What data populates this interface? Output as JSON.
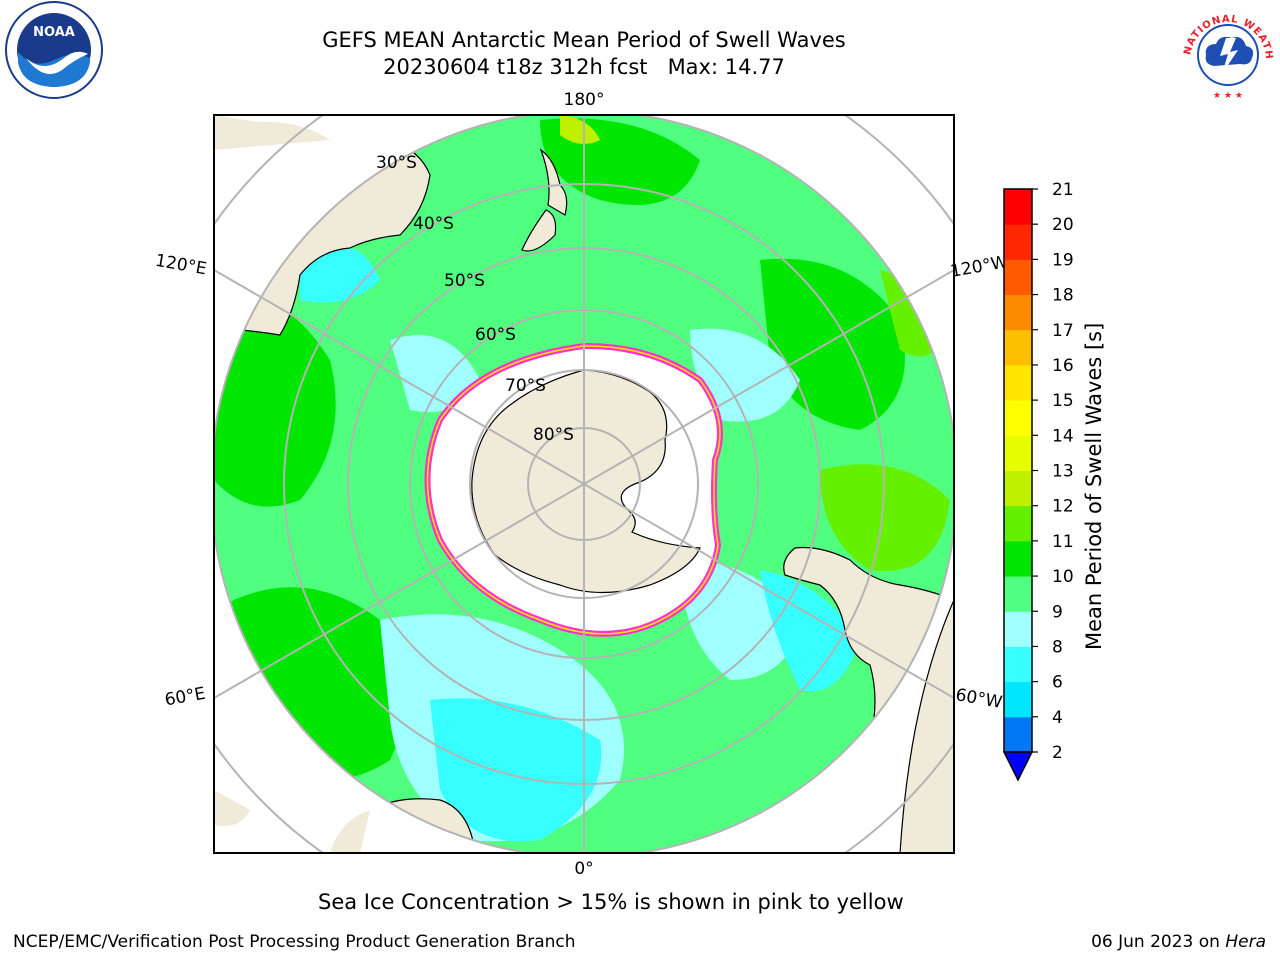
{
  "header": {
    "title_line1": "GEFS MEAN Antarctic Mean Period of Swell Waves",
    "title_line2": "20230604 t18z 312h fcst   Max: 14.77"
  },
  "logos": {
    "noaa": {
      "text": "NOAA",
      "ring_text": "NATIONAL OCEANIC AND ATMOSPHERIC ADMINISTRATION · U.S. DEPARTMENT OF COMMERCE"
    },
    "nws": {
      "ring_text": "NATIONAL WEATHER SERVICE"
    }
  },
  "map": {
    "projection": "south-polar-stereographic",
    "longitude_labels": {
      "top": "180°",
      "bottom": "0°",
      "left_upper": "120°E",
      "left_lower": "60°E",
      "right_upper": "120°W",
      "right_lower": "60°W"
    },
    "latitude_labels": [
      "30°S",
      "40°S",
      "50°S",
      "60°S",
      "70°S",
      "80°S"
    ],
    "colors": {
      "land": "#efebd8",
      "ice_free": "#ffffff",
      "grid": "#b4b4b4",
      "sea_ice_edge": "#ff33cc"
    }
  },
  "colorbar": {
    "label": "Mean Period of Swell Waves [s]",
    "ticks": [
      "2",
      "4",
      "6",
      "8",
      "9",
      "10",
      "11",
      "12",
      "13",
      "14",
      "15",
      "16",
      "17",
      "18",
      "19",
      "20",
      "21"
    ],
    "colors": [
      "#0078f5",
      "#00e6ff",
      "#38ffff",
      "#a0ffff",
      "#50ff80",
      "#00e600",
      "#64f000",
      "#bef000",
      "#e6ff00",
      "#ffff00",
      "#ffe600",
      "#ffbe00",
      "#ff8c00",
      "#ff5a00",
      "#ff2800",
      "#ff0000"
    ],
    "under_color": "#0000ff"
  },
  "caption": "Sea Ice Concentration > 15% is shown in pink to yellow",
  "footer": {
    "credit": "NCEP/EMC/Verification Post Processing Product Generation Branch",
    "date": "06 Jun 2023 on ",
    "host": "Hera"
  }
}
